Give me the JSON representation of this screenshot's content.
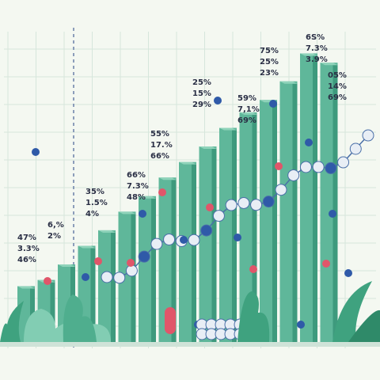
{
  "colors": {
    "background": "#f4f8f1",
    "grid": "#d6e6dc",
    "bar_front": "#5fb79a",
    "bar_side": "#3e9a7d",
    "bar_top": "#8fd3ba",
    "molecule_white": "#e8eef5",
    "molecule_blue": "#2f5aa8",
    "molecule_red": "#e0566a",
    "molecule_outline": "#4a6fa8",
    "plant": "#3fa27f",
    "label": "#2a2f45"
  },
  "chart_data": {
    "type": "bar",
    "title": "",
    "xlabel": "",
    "ylabel": "",
    "ylim": [
      0,
      100
    ],
    "grid": true,
    "values": [
      18,
      20,
      25,
      31,
      36,
      42,
      47,
      53,
      58,
      63,
      69,
      74,
      78,
      84,
      93,
      90
    ],
    "data_labels": [
      [
        "47%",
        "3.3%",
        "46%"
      ],
      [
        "6,%",
        "2%"
      ],
      [
        "35%",
        "1.5%",
        "4%"
      ],
      [
        "66%",
        "7.3%",
        "48%"
      ],
      [
        "55%",
        "17.%",
        "66%"
      ],
      [
        "25%",
        "15%",
        "29%"
      ],
      [
        "59%",
        "7,1%",
        "69%"
      ],
      [
        "75%",
        "25%",
        "23%"
      ],
      [
        "6S%",
        "7.3%",
        "3.9%"
      ],
      [
        "05%",
        "14%",
        "69%"
      ]
    ]
  }
}
